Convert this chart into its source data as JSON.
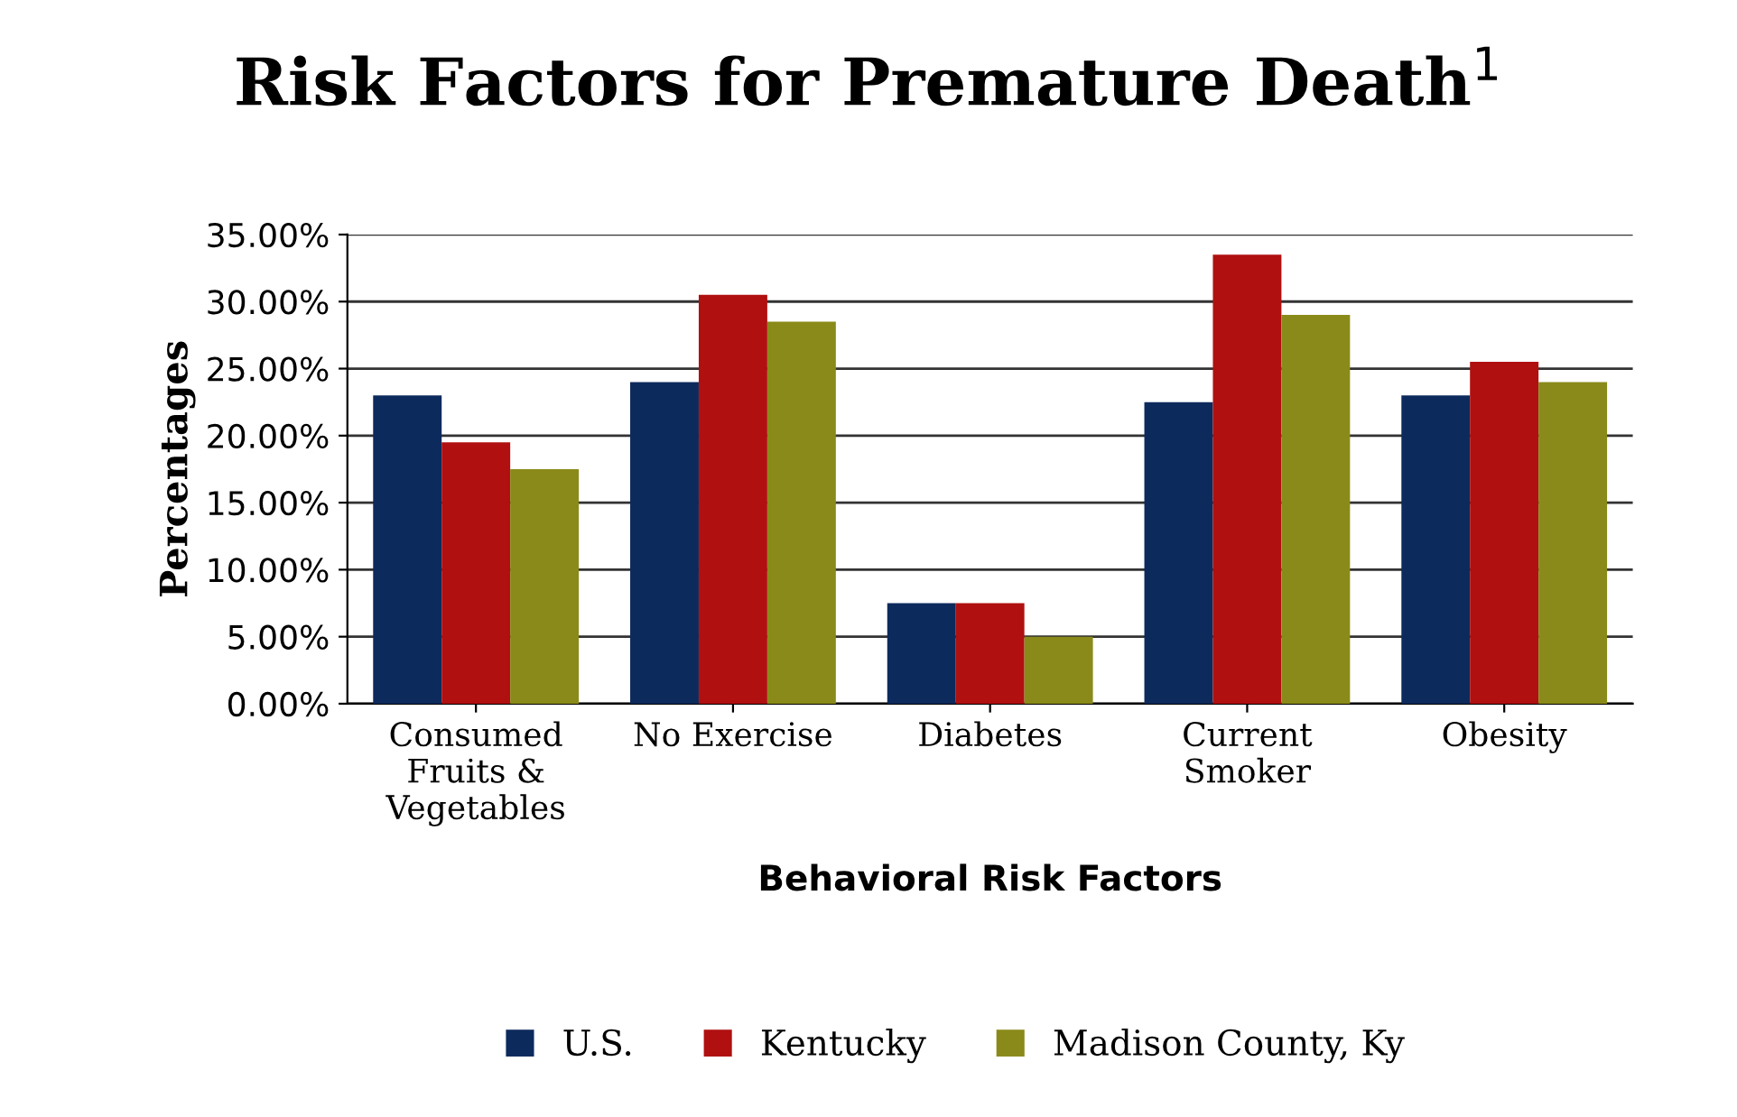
{
  "chart_data": {
    "type": "bar",
    "title": "Risk Factors for Premature Death$^{1}$",
    "xlabel": "Behavioral Risk Factors",
    "ylabel": "Percentages",
    "categories": [
      "Consumed\nFruits &\nVegetables",
      "No Exercise",
      "Diabetes",
      "Current\nSmoker",
      "Obesity"
    ],
    "series": [
      {
        "name": "U.S.",
        "color": "#0d2a5c",
        "values": [
          23,
          24,
          7.5,
          22.5,
          23
        ]
      },
      {
        "name": "Kentucky",
        "color": "#b01010",
        "values": [
          19.5,
          30.5,
          7.5,
          33.5,
          25.5
        ]
      },
      {
        "name": "Madison County, Ky",
        "color": "#8a8a1a",
        "values": [
          17.5,
          28.5,
          5,
          29,
          24
        ]
      }
    ],
    "ylim": [
      0,
      35
    ],
    "yticks": [
      {
        "value": 0,
        "label": "0.00%"
      },
      {
        "value": 5,
        "label": "5.00%"
      },
      {
        "value": 10,
        "label": "10.00%"
      },
      {
        "value": 15,
        "label": "15.00%"
      },
      {
        "value": 20,
        "label": "20.00%"
      },
      {
        "value": 25,
        "label": "25.00%"
      },
      {
        "value": 30,
        "label": "30.00%"
      },
      {
        "value": 35,
        "label": "35.00%"
      }
    ],
    "grid": "y",
    "legend": "bottom"
  }
}
